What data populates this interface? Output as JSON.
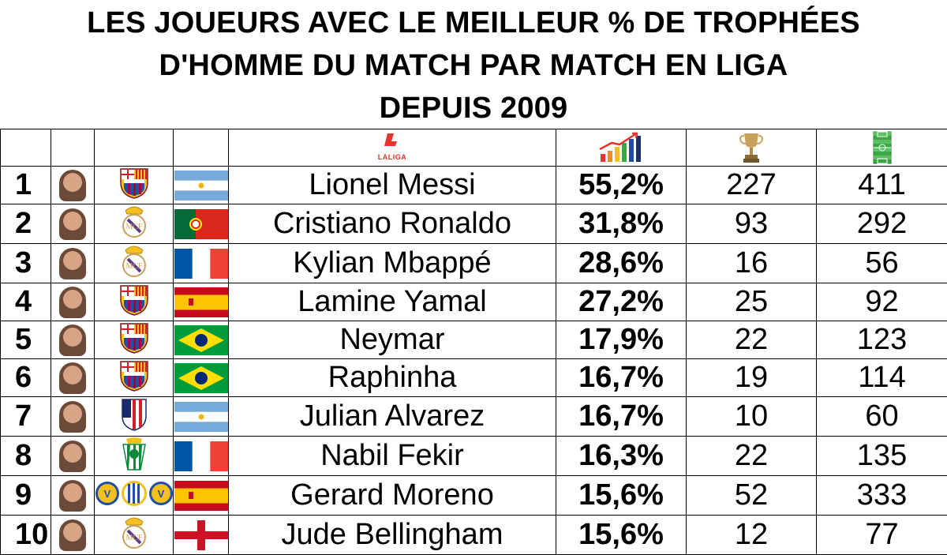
{
  "title": {
    "line1": "LES JOUEURS AVEC LE MEILLEUR % DE TROPHÉES",
    "line2": "D'HOMME DU MATCH PAR MATCH EN LIGA",
    "line3": "DEPUIS 2009"
  },
  "header": {
    "logo_text": "LALIGA",
    "icons": [
      "laliga-logo",
      "bar-chart-growth-icon",
      "trophy-icon",
      "football-pitch-icon"
    ]
  },
  "colors": {
    "laliga_red": "#e5342b",
    "barca_blue": "#1f4fa0",
    "barca_red": "#a50044",
    "pitch_green": "#3aa845"
  },
  "rows": [
    {
      "rank": "1",
      "name": "Lionel Messi",
      "pct": "55,2%",
      "trophies": "227",
      "matches": "411",
      "club": "fc-barcelona-crest",
      "flag": "argentina-flag"
    },
    {
      "rank": "2",
      "name": "Cristiano Ronaldo",
      "pct": "31,8%",
      "trophies": "93",
      "matches": "292",
      "club": "real-madrid-crest",
      "flag": "portugal-flag"
    },
    {
      "rank": "3",
      "name": "Kylian Mbappé",
      "pct": "28,6%",
      "trophies": "16",
      "matches": "56",
      "club": "real-madrid-crest",
      "flag": "france-flag"
    },
    {
      "rank": "4",
      "name": "Lamine Yamal",
      "pct": "27,2%",
      "trophies": "25",
      "matches": "92",
      "club": "fc-barcelona-crest",
      "flag": "spain-flag"
    },
    {
      "rank": "5",
      "name": "Neymar",
      "pct": "17,9%",
      "trophies": "22",
      "matches": "123",
      "club": "fc-barcelona-crest",
      "flag": "brazil-flag"
    },
    {
      "rank": "6",
      "name": "Raphinha",
      "pct": "16,7%",
      "trophies": "19",
      "matches": "114",
      "club": "fc-barcelona-crest",
      "flag": "brazil-flag"
    },
    {
      "rank": "7",
      "name": "Julian Alvarez",
      "pct": "16,7%",
      "trophies": "10",
      "matches": "60",
      "club": "atletico-madrid-crest",
      "flag": "argentina-flag"
    },
    {
      "rank": "8",
      "name": "Nabil Fekir",
      "pct": "16,3%",
      "trophies": "22",
      "matches": "135",
      "club": "real-betis-crest",
      "flag": "france-flag"
    },
    {
      "rank": "9",
      "name": "Gerard Moreno",
      "pct": "15,6%",
      "trophies": "52",
      "matches": "333",
      "club": "villarreal-espanyol-villarreal-crests",
      "flag": "spain-flag"
    },
    {
      "rank": "10",
      "name": "Jude Bellingham",
      "pct": "15,6%",
      "trophies": "12",
      "matches": "77",
      "club": "real-madrid-crest",
      "flag": "england-flag"
    }
  ]
}
